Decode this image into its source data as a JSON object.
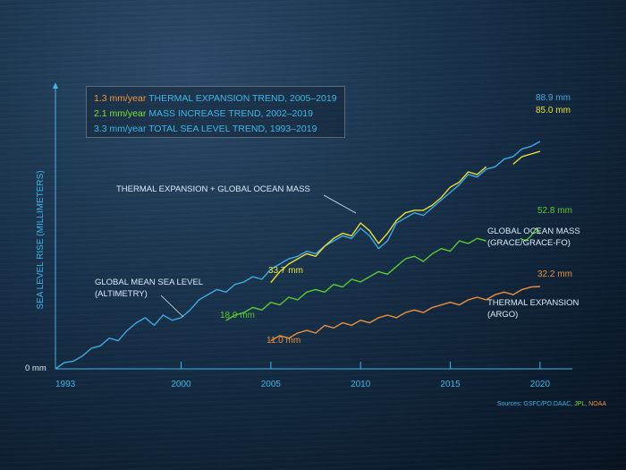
{
  "chart_data": {
    "type": "line",
    "xlabel": "",
    "ylabel": "SEA LEVEL RISE (MILLIMETERS)",
    "x_ticks": [
      1993,
      2000,
      2005,
      2010,
      2015,
      2020
    ],
    "xlim": [
      1993,
      2021.5
    ],
    "ylim": [
      0,
      105
    ],
    "y_zero_label": "0 mm",
    "colors": {
      "gmsl": "#3fa9e0",
      "combined": "#e8e03a",
      "mass": "#5cc832",
      "thermal": "#e98f3c",
      "axis": "#3fb6e8",
      "label": "#d8eaf5"
    },
    "legend": [
      {
        "rate": "1.3 mm/year",
        "text": " THERMAL EXPANSION TREND, 2005–2019",
        "color": "#f0963c"
      },
      {
        "rate": "2.1 mm/year",
        "text": " MASS INCREASE TREND, 2002–2019",
        "color": "#7be03a"
      },
      {
        "rate": "3.3 mm/year",
        "text": " TOTAL SEA LEVEL TREND, 1993–2019",
        "color": "#3fb6e8"
      }
    ],
    "series": [
      {
        "key": "gmsl",
        "x": [
          1993.0,
          1993.5,
          1994.0,
          1994.5,
          1995.0,
          1995.5,
          1996.0,
          1996.5,
          1997.0,
          1997.5,
          1998.0,
          1998.5,
          1999.0,
          1999.5,
          2000.0,
          2000.5,
          2001.0,
          2001.5,
          2002.0,
          2002.5,
          2003.0,
          2003.5,
          2004.0,
          2004.5,
          2005.0,
          2005.5,
          2006.0,
          2006.5,
          2007.0,
          2007.5,
          2008.0,
          2008.5,
          2009.0,
          2009.5,
          2010.0,
          2010.5,
          2011.0,
          2011.5,
          2012.0,
          2012.5,
          2013.0,
          2013.5,
          2014.0,
          2014.5,
          2015.0,
          2015.5,
          2016.0,
          2016.5,
          2017.0,
          2017.5,
          2018.0,
          2018.5,
          2019.0,
          2019.5,
          2020.0
        ],
        "y": [
          0.0,
          2.5,
          3.0,
          5.0,
          8.0,
          9.0,
          12.0,
          11.0,
          15.0,
          18.0,
          20.0,
          17.0,
          21.0,
          19.0,
          20.0,
          23.0,
          27.0,
          29.0,
          31.0,
          30.0,
          33.0,
          34.0,
          36.0,
          35.0,
          39.0,
          41.0,
          43.0,
          44.0,
          46.0,
          45.0,
          48.0,
          50.0,
          52.0,
          51.0,
          55.0,
          52.0,
          47.0,
          50.0,
          57.0,
          59.0,
          61.0,
          60.0,
          63.0,
          66.0,
          69.0,
          72.0,
          76.0,
          75.0,
          78.0,
          79.0,
          82.0,
          83.0,
          86.0,
          87.0,
          88.9
        ]
      },
      {
        "key": "combined",
        "x": [
          2005.0,
          2005.5,
          2006.0,
          2006.5,
          2007.0,
          2007.5,
          2008.0,
          2008.5,
          2009.0,
          2009.5,
          2010.0,
          2010.5,
          2011.0,
          2011.5,
          2012.0,
          2012.5,
          2013.0,
          2013.5,
          2014.0,
          2014.5,
          2015.0,
          2015.5,
          2016.0,
          2016.5,
          2017.0,
          2018.5,
          2019.0,
          2019.5,
          2020.0
        ],
        "y": [
          33.7,
          38.0,
          41.0,
          43.0,
          45.0,
          44.0,
          48.0,
          51.0,
          53.0,
          52.0,
          57.0,
          54.0,
          49.0,
          53.0,
          58.0,
          61.0,
          62.0,
          62.0,
          64.0,
          67.0,
          71.0,
          73.0,
          77.0,
          76.0,
          79.0,
          80.0,
          83.0,
          84.0,
          85.0
        ]
      },
      {
        "key": "mass",
        "x": [
          2002.5,
          2003.0,
          2003.5,
          2004.0,
          2004.5,
          2005.0,
          2005.5,
          2006.0,
          2006.5,
          2007.0,
          2007.5,
          2008.0,
          2008.5,
          2009.0,
          2009.5,
          2010.0,
          2010.5,
          2011.0,
          2011.5,
          2012.0,
          2012.5,
          2013.0,
          2013.5,
          2014.0,
          2014.5,
          2015.0,
          2015.5,
          2016.0,
          2016.5,
          2017.0,
          2018.9,
          2019.2,
          2019.5,
          2019.8,
          2020.0
        ],
        "y": [
          18.9,
          21.0,
          22.0,
          24.0,
          23.0,
          26.0,
          25.0,
          28.0,
          27.0,
          30.0,
          31.0,
          30.0,
          33.0,
          32.0,
          35.0,
          34.0,
          36.0,
          38.0,
          37.0,
          40.0,
          43.0,
          44.0,
          42.0,
          45.0,
          47.0,
          46.0,
          50.0,
          49.0,
          51.0,
          50.0,
          51.0,
          50.0,
          52.0,
          55.0,
          52.8
        ]
      },
      {
        "key": "thermal",
        "x": [
          2005.0,
          2005.5,
          2006.0,
          2006.5,
          2007.0,
          2007.5,
          2008.0,
          2008.5,
          2009.0,
          2009.5,
          2010.0,
          2010.5,
          2011.0,
          2011.5,
          2012.0,
          2012.5,
          2013.0,
          2013.5,
          2014.0,
          2014.5,
          2015.0,
          2015.5,
          2016.0,
          2016.5,
          2017.0,
          2017.5,
          2018.0,
          2018.5,
          2019.0,
          2019.5,
          2020.0
        ],
        "y": [
          11.0,
          13.0,
          12.0,
          14.0,
          15.0,
          14.0,
          17.0,
          16.0,
          18.0,
          17.0,
          19.0,
          18.0,
          20.0,
          21.0,
          20.0,
          22.0,
          23.0,
          22.0,
          24.0,
          25.0,
          26.0,
          25.0,
          27.0,
          28.0,
          27.0,
          29.0,
          30.0,
          29.0,
          31.0,
          32.0,
          32.2
        ]
      }
    ],
    "annotations": [
      {
        "key": "ann_gmsl",
        "lines": [
          "GLOBAL MEAN SEA LEVEL",
          "(ALTIMETRY)"
        ],
        "color": "#d8eaf5"
      },
      {
        "key": "ann_combined",
        "lines": [
          "THERMAL EXPANSION + GLOBAL OCEAN MASS"
        ],
        "color": "#d8eaf5"
      },
      {
        "key": "ann_mass",
        "lines": [
          "GLOBAL OCEAN MASS",
          "(GRACE/GRACE-FO)"
        ],
        "color": "#d8eaf5"
      },
      {
        "key": "ann_thermal",
        "lines": [
          "THERMAL EXPANSION",
          "(ARGO)"
        ],
        "color": "#d8eaf5"
      }
    ],
    "value_labels": [
      {
        "key": "gmsl_end",
        "text": "88.9 mm",
        "color": "#3fa9e0"
      },
      {
        "key": "combined_end",
        "text": "85.0 mm",
        "color": "#e8e03a"
      },
      {
        "key": "combined_start",
        "text": "33.7 mm",
        "color": "#e8e03a"
      },
      {
        "key": "mass_end",
        "text": "52.8 mm",
        "color": "#5cc832"
      },
      {
        "key": "mass_start",
        "text": "18.9 mm",
        "color": "#5cc832"
      },
      {
        "key": "thermal_end",
        "text": "32.2 mm",
        "color": "#e98f3c"
      },
      {
        "key": "thermal_start",
        "text": "11.0 mm",
        "color": "#e98f3c"
      }
    ]
  },
  "sources": {
    "prefix": "Sources: GSFC/PO.DAAC, ",
    "jpl": "JPL",
    "sep": ", ",
    "noaa": "NOAA",
    "prefix_color": "#37b6e6",
    "jpl_color": "#7be03a",
    "noaa_color": "#f0963c"
  }
}
